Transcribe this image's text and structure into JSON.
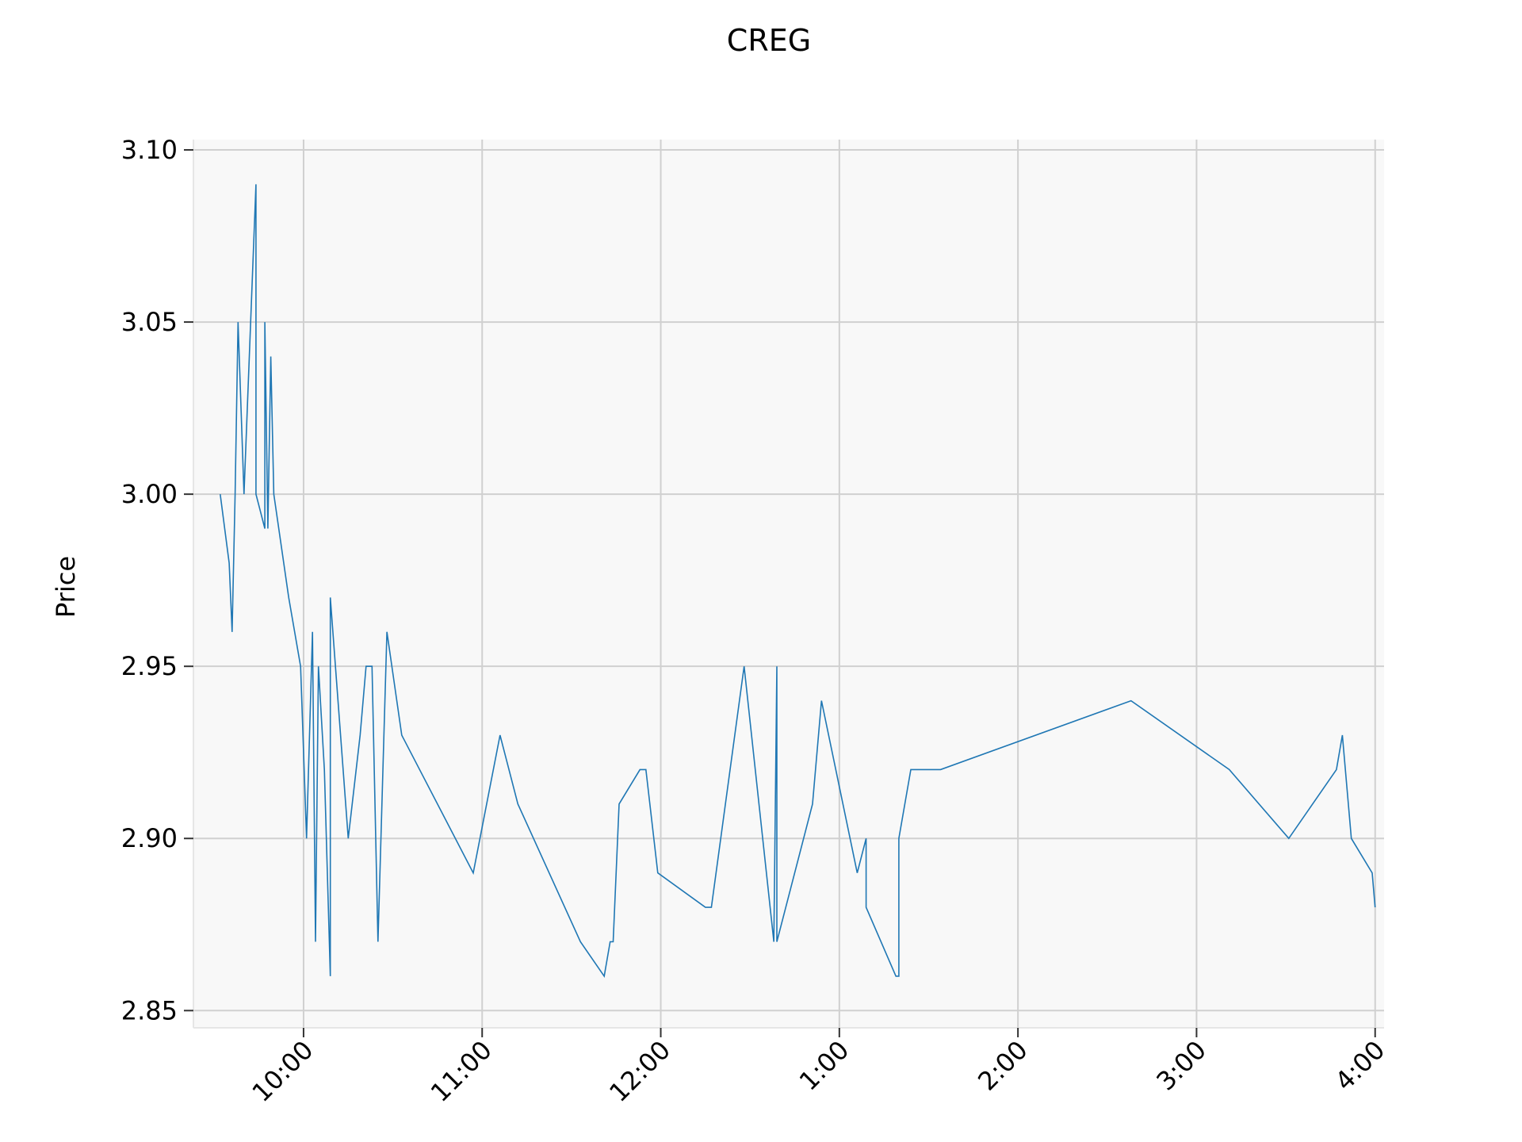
{
  "chart_data": {
    "type": "line",
    "title": "CREG",
    "xlabel": "",
    "ylabel": "Price",
    "ylim": [
      2.845,
      3.103
    ],
    "xlim": [
      "09:23",
      "16:03"
    ],
    "grid": true,
    "legend": "none",
    "colors": {
      "line": "#1f77b4",
      "plot_bg": "#f8f8f8",
      "grid": "#d0d0d0"
    },
    "yticks": [
      {
        "value": 2.85,
        "label": "2.85"
      },
      {
        "value": 2.9,
        "label": "2.90"
      },
      {
        "value": 2.95,
        "label": "2.95"
      },
      {
        "value": 3.0,
        "label": "3.00"
      },
      {
        "value": 3.05,
        "label": "3.05"
      },
      {
        "value": 3.1,
        "label": "3.10"
      }
    ],
    "xticks": [
      {
        "value": "10:00",
        "label": "10:00"
      },
      {
        "value": "11:00",
        "label": "11:00"
      },
      {
        "value": "12:00",
        "label": "12:00"
      },
      {
        "value": "13:00",
        "label": "1:00"
      },
      {
        "value": "14:00",
        "label": "2:00"
      },
      {
        "value": "15:00",
        "label": "3:00"
      },
      {
        "value": "16:00",
        "label": "4:00"
      }
    ],
    "series": [
      {
        "points": [
          [
            "09:32",
            3.0
          ],
          [
            "09:35",
            2.98
          ],
          [
            "09:36",
            2.96
          ],
          [
            "09:37",
            3.0
          ],
          [
            "09:38",
            3.05
          ],
          [
            "09:40",
            3.0
          ],
          [
            "09:44",
            3.09
          ],
          [
            "09:44",
            3.0
          ],
          [
            "09:47",
            2.99
          ],
          [
            "09:47",
            3.05
          ],
          [
            "09:48",
            2.99
          ],
          [
            "09:49",
            3.04
          ],
          [
            "09:50",
            3.0
          ],
          [
            "09:55",
            2.97
          ],
          [
            "09:59",
            2.95
          ],
          [
            "10:01",
            2.9
          ],
          [
            "10:03",
            2.96
          ],
          [
            "10:04",
            2.87
          ],
          [
            "10:05",
            2.95
          ],
          [
            "10:07",
            2.92
          ],
          [
            "10:09",
            2.86
          ],
          [
            "10:09",
            2.97
          ],
          [
            "10:15",
            2.9
          ],
          [
            "10:19",
            2.93
          ],
          [
            "10:21",
            2.95
          ],
          [
            "10:23",
            2.95
          ],
          [
            "10:25",
            2.87
          ],
          [
            "10:27",
            2.93
          ],
          [
            "10:28",
            2.96
          ],
          [
            "10:33",
            2.93
          ],
          [
            "10:57",
            2.89
          ],
          [
            "11:06",
            2.93
          ],
          [
            "11:12",
            2.91
          ],
          [
            "11:33",
            2.87
          ],
          [
            "11:41",
            2.86
          ],
          [
            "11:43",
            2.87
          ],
          [
            "11:44",
            2.87
          ],
          [
            "11:46",
            2.91
          ],
          [
            "11:53",
            2.92
          ],
          [
            "11:55",
            2.92
          ],
          [
            "11:59",
            2.89
          ],
          [
            "12:15",
            2.88
          ],
          [
            "12:17",
            2.88
          ],
          [
            "12:28",
            2.95
          ],
          [
            "12:38",
            2.87
          ],
          [
            "12:39",
            2.95
          ],
          [
            "12:39",
            2.87
          ],
          [
            "12:51",
            2.91
          ],
          [
            "12:54",
            2.94
          ],
          [
            "13:06",
            2.89
          ],
          [
            "13:09",
            2.9
          ],
          [
            "13:09",
            2.88
          ],
          [
            "13:19",
            2.86
          ],
          [
            "13:20",
            2.86
          ],
          [
            "13:20",
            2.9
          ],
          [
            "13:24",
            2.92
          ],
          [
            "13:34",
            2.92
          ],
          [
            "14:38",
            2.94
          ],
          [
            "15:11",
            2.92
          ],
          [
            "15:31",
            2.9
          ],
          [
            "15:47",
            2.92
          ],
          [
            "15:49",
            2.93
          ],
          [
            "15:52",
            2.9
          ],
          [
            "15:59",
            2.89
          ],
          [
            "16:00",
            2.88
          ]
        ]
      }
    ]
  }
}
